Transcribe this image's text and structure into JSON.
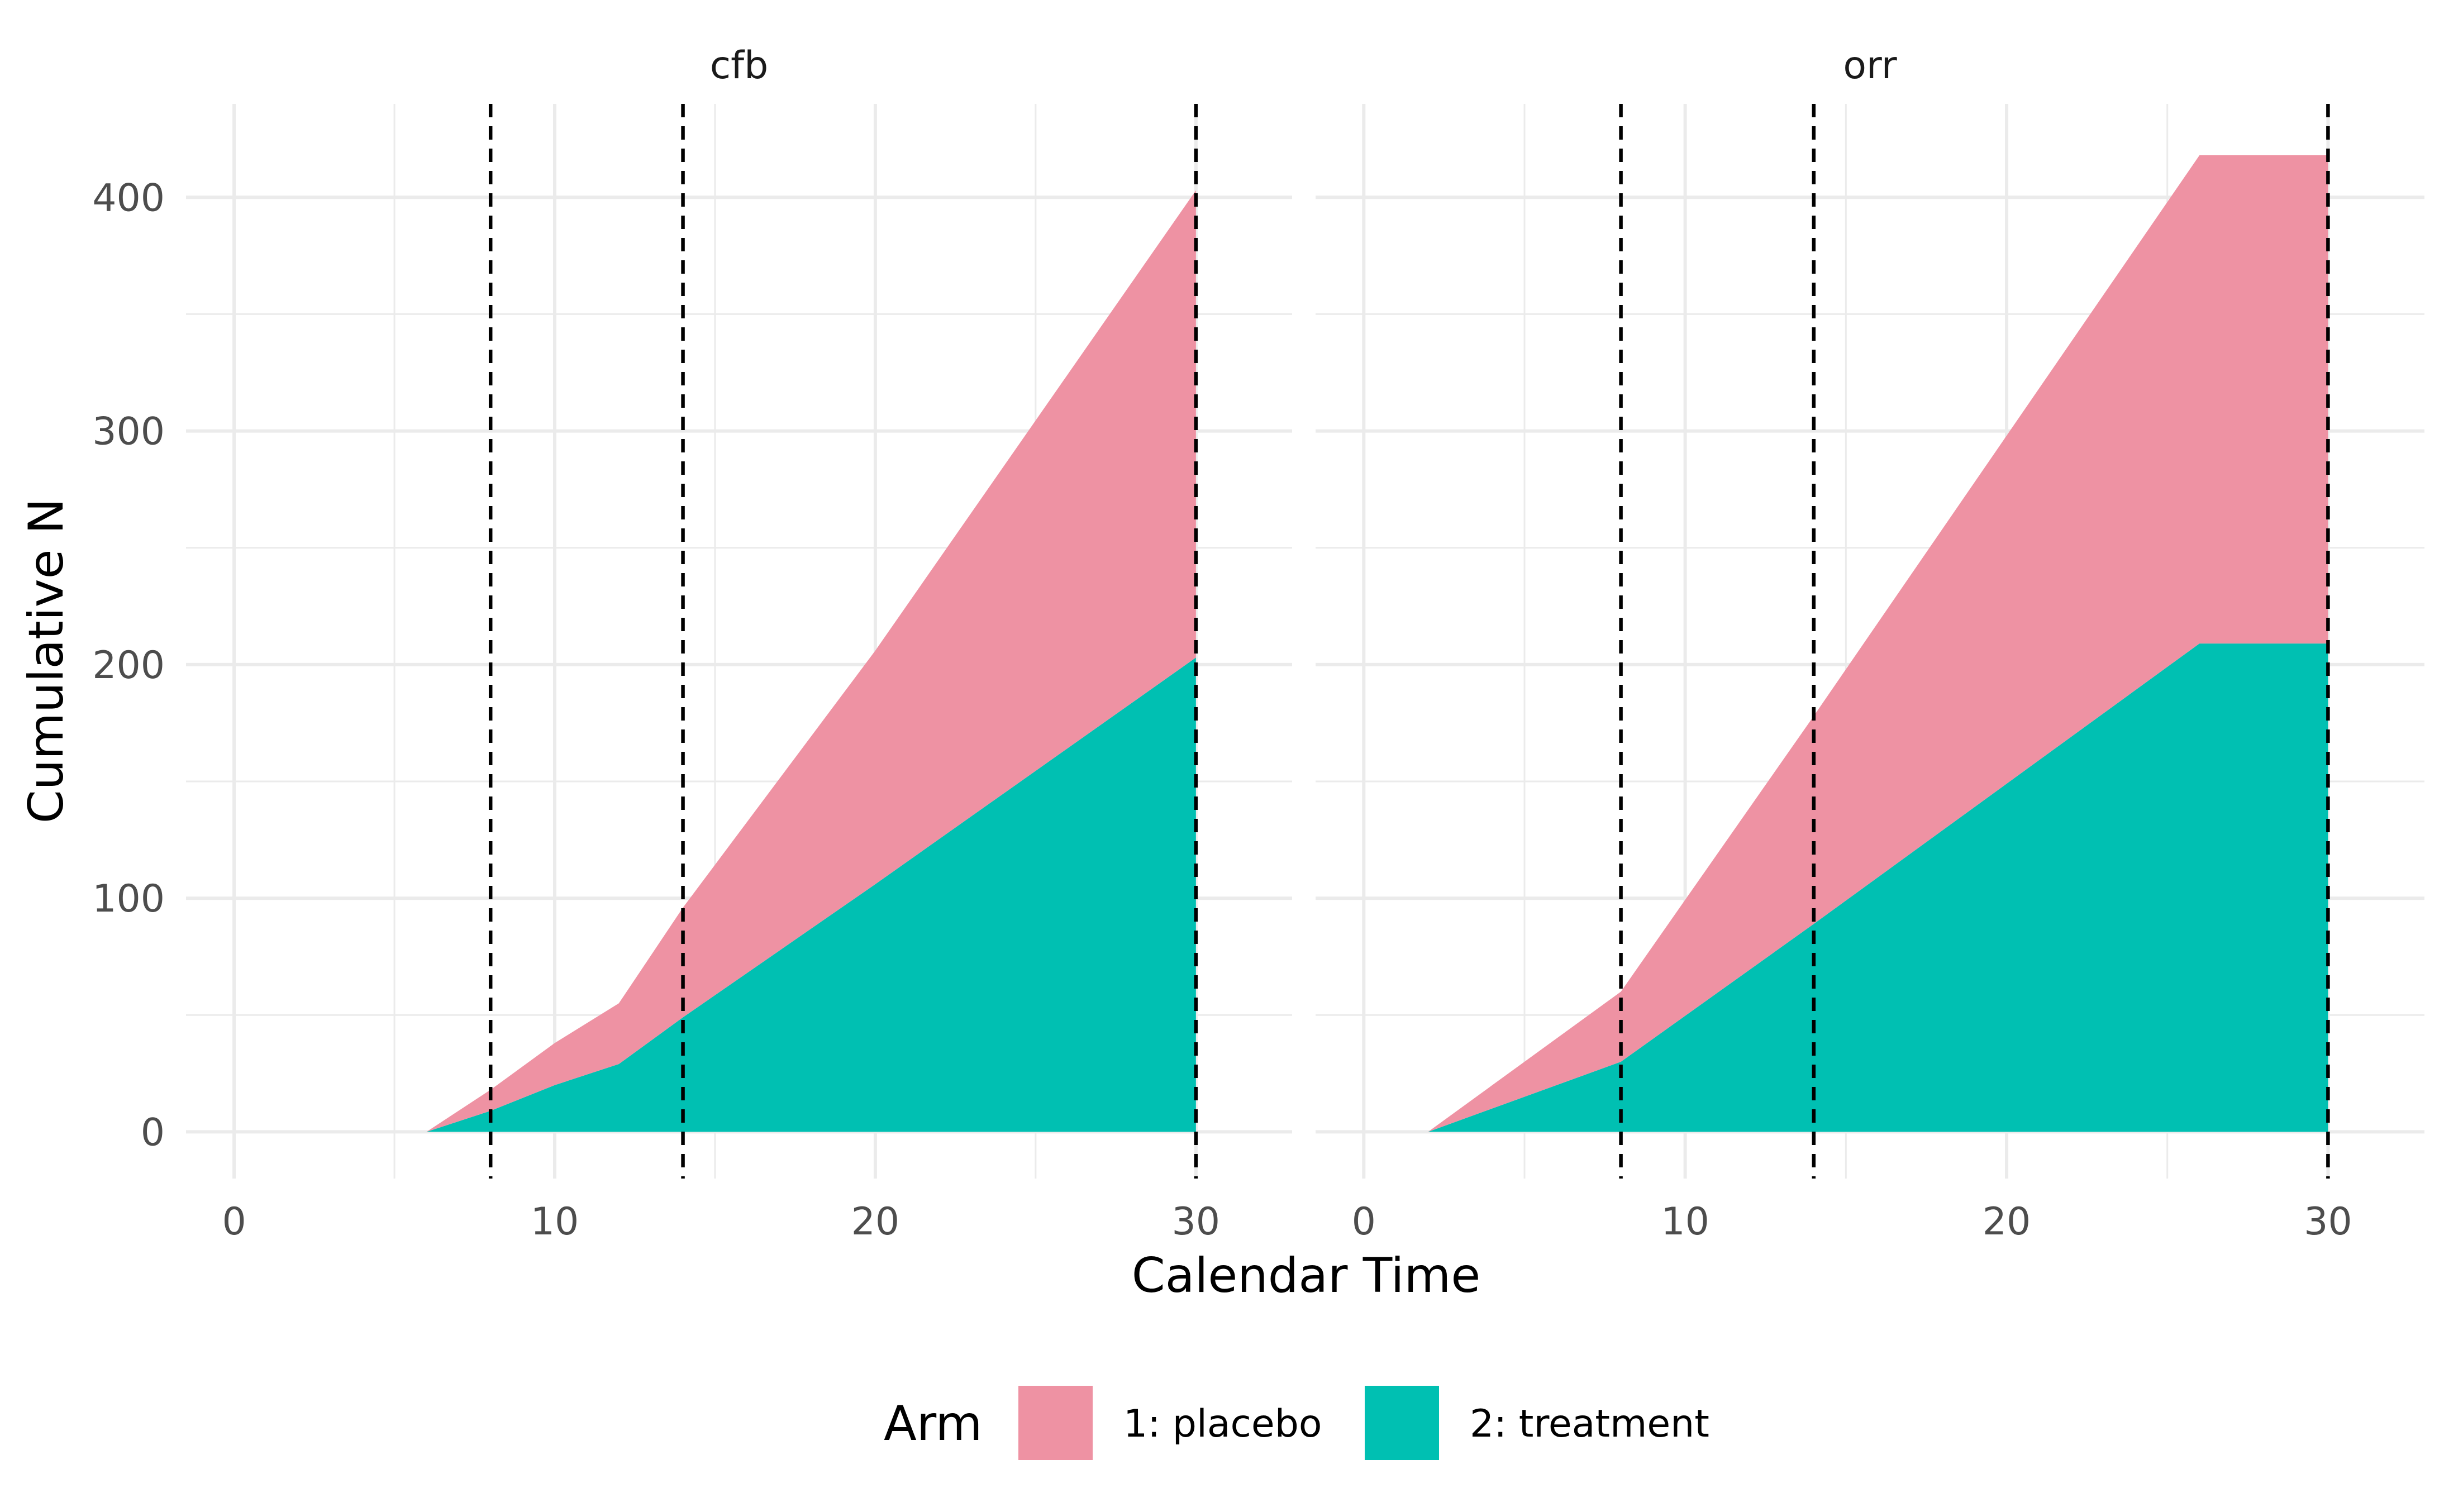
{
  "chart_data": {
    "type": "area",
    "stacked": true,
    "xlabel": "Calendar Time",
    "ylabel": "Cumulative N",
    "xlim": [
      -1.5,
      33
    ],
    "ylim": [
      -20,
      440
    ],
    "x_ticks": [
      0,
      10,
      20,
      30
    ],
    "y_ticks": [
      0,
      100,
      200,
      300,
      400
    ],
    "grid": true,
    "legend": {
      "title": "Arm",
      "placement": "bottom",
      "entries": [
        {
          "label": "1: placebo",
          "color": "#ee92a3"
        },
        {
          "label": "2: treatment",
          "color": "#00c0b2"
        }
      ]
    },
    "vlines": [
      8,
      14,
      30
    ],
    "panels": [
      {
        "label": "cfb",
        "series": [
          {
            "name": "2: treatment",
            "color": "#00c0b2",
            "x": [
              6,
              8,
              10,
              12,
              14,
              20,
              30
            ],
            "y": [
              0,
              9,
              20,
              29,
              49,
              106,
              203
            ]
          },
          {
            "name": "1: placebo",
            "color": "#ee92a3",
            "x": [
              6,
              8,
              10,
              12,
              14,
              20,
              30
            ],
            "y": [
              0,
              9,
              18,
              26,
              47,
              100,
              200
            ]
          }
        ]
      },
      {
        "label": "orr",
        "series": [
          {
            "name": "2: treatment",
            "color": "#00c0b2",
            "x": [
              2,
              8,
              14,
              26,
              30
            ],
            "y": [
              0,
              30,
              89,
              209,
              209
            ]
          },
          {
            "name": "1: placebo",
            "color": "#ee92a3",
            "x": [
              2,
              8,
              14,
              26,
              30
            ],
            "y": [
              0,
              30,
              89,
              209,
              209
            ]
          }
        ]
      }
    ]
  }
}
